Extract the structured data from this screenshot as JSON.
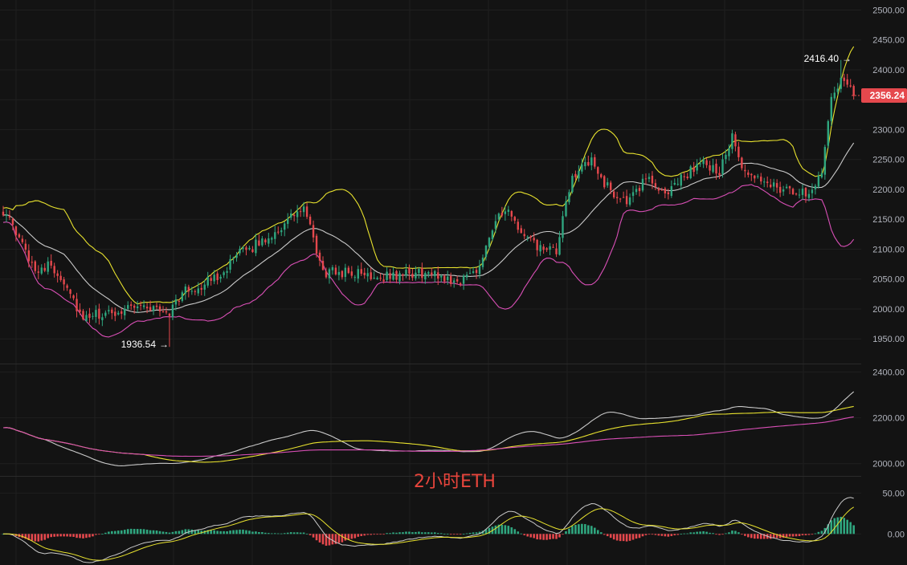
{
  "watermark": "2小时ETH",
  "current_price": "2356.24",
  "high_marker": "2416.40",
  "low_marker": "1936.54",
  "colors": {
    "background": "#131313",
    "grid": "#1f1f1f",
    "up": "#2fa67f",
    "down": "#e5484d",
    "ma_slow": "#c9c9c9",
    "bb_upper": "#e8e22e",
    "bb_lower": "#d94fb6",
    "price_tag": "#e5484d",
    "watermark": "#e8453c"
  },
  "chart_data": [
    {
      "type": "candlestick",
      "title": "",
      "ylim": [
        1910,
        2510
      ],
      "y_ticks": [
        "2500.00",
        "2450.00",
        "2400.00",
        "2350.00",
        "2300.00",
        "2250.00",
        "2200.00",
        "2150.00",
        "2100.00",
        "2050.00",
        "2000.00",
        "1950.00"
      ],
      "y_tick_values": [
        2500,
        2450,
        2400,
        2350,
        2300,
        2250,
        2200,
        2150,
        2100,
        2050,
        2000,
        1950
      ],
      "anchors": [
        [
          0,
          2165
        ],
        [
          5,
          2115
        ],
        [
          10,
          2068
        ],
        [
          15,
          2072
        ],
        [
          20,
          2040
        ],
        [
          25,
          1978
        ],
        [
          28,
          1990
        ],
        [
          34,
          1990
        ],
        [
          40,
          2008
        ],
        [
          46,
          2002
        ],
        [
          52,
          1995
        ],
        [
          56,
          2028
        ],
        [
          62,
          2038
        ],
        [
          68,
          2060
        ],
        [
          74,
          2092
        ],
        [
          80,
          2110
        ],
        [
          86,
          2132
        ],
        [
          92,
          2162
        ],
        [
          94,
          2168
        ],
        [
          97,
          2115
        ],
        [
          100,
          2060
        ],
        [
          106,
          2062
        ],
        [
          112,
          2058
        ],
        [
          118,
          2055
        ],
        [
          124,
          2056
        ],
        [
          130,
          2060
        ],
        [
          136,
          2056
        ],
        [
          142,
          2045
        ],
        [
          148,
          2065
        ],
        [
          154,
          2150
        ],
        [
          158,
          2160
        ],
        [
          163,
          2120
        ],
        [
          168,
          2100
        ],
        [
          173,
          2095
        ],
        [
          178,
          2225
        ],
        [
          184,
          2245
        ],
        [
          190,
          2195
        ],
        [
          196,
          2180
        ],
        [
          202,
          2225
        ],
        [
          206,
          2190
        ],
        [
          212,
          2218
        ],
        [
          218,
          2245
        ],
        [
          224,
          2230
        ],
        [
          228,
          2285
        ],
        [
          232,
          2222
        ],
        [
          238,
          2215
        ],
        [
          246,
          2195
        ],
        [
          252,
          2195
        ],
        [
          256,
          2232
        ],
        [
          259,
          2360
        ],
        [
          263,
          2385
        ],
        [
          266,
          2356.24
        ]
      ],
      "annotations": [
        {
          "label": "2416.40",
          "candle_index": 262,
          "price": 2416.4,
          "kind": "high"
        },
        {
          "label": "1936.54",
          "candle_index": 52,
          "price": 1936.54,
          "kind": "low"
        }
      ],
      "overlays": [
        "bollinger_upper",
        "bollinger_middle",
        "bollinger_lower"
      ]
    },
    {
      "type": "line",
      "title": "",
      "ylim": [
        1950,
        2430
      ],
      "y_ticks": [
        "2400.00",
        "2200.00",
        "2000.00"
      ],
      "y_tick_values": [
        2400,
        2200,
        2000
      ],
      "series": [
        {
          "key": "fast_ma",
          "color": "#c9c9c9"
        },
        {
          "key": "mid_ma",
          "color": "#e8e22e"
        },
        {
          "key": "slow_ma",
          "color": "#d94fb6"
        }
      ]
    },
    {
      "type": "bar",
      "title": "",
      "ylim": [
        -38,
        70
      ],
      "y_ticks": [
        "50.00",
        "0.00"
      ],
      "y_tick_values": [
        50,
        0
      ],
      "series": [
        {
          "key": "macd_hist",
          "colors": [
            "#2fa67f",
            "#e5484d"
          ]
        },
        {
          "key": "dif",
          "color": "#c9c9c9"
        },
        {
          "key": "dea",
          "color": "#e8e22e"
        }
      ]
    }
  ]
}
